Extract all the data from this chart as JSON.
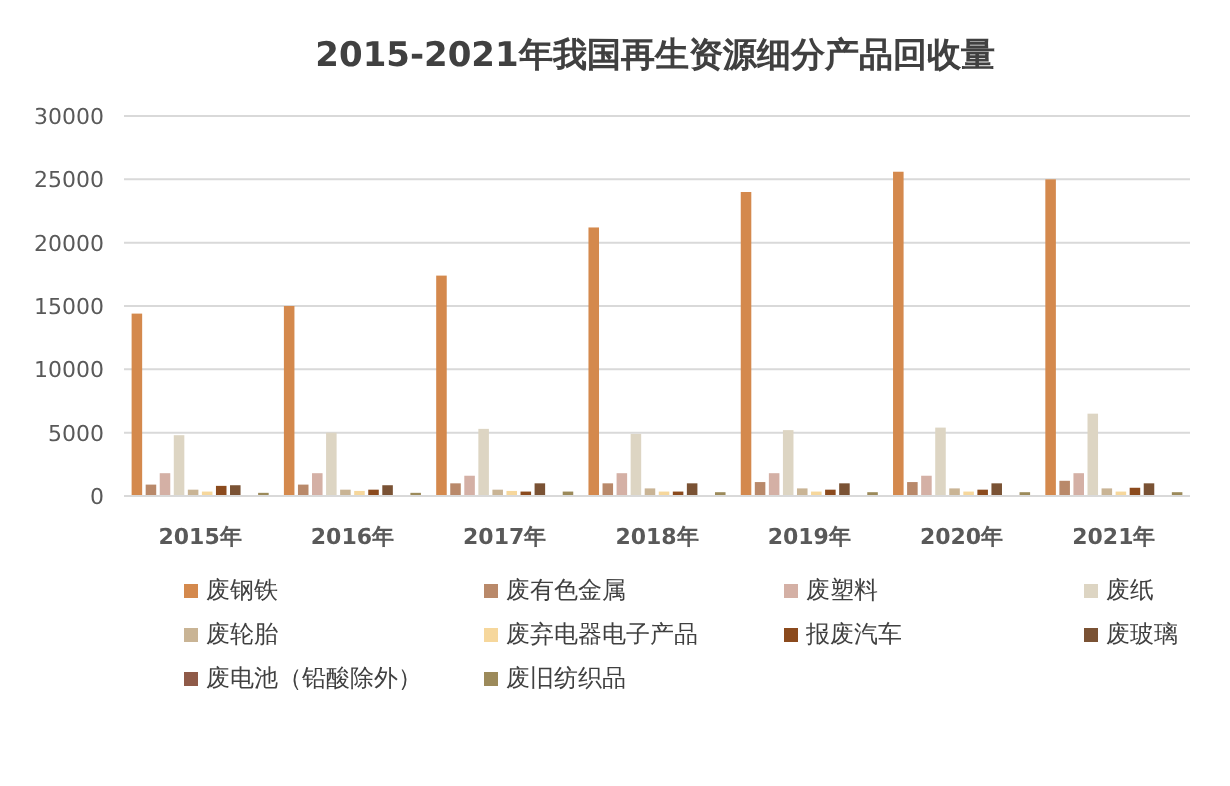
{
  "chart_data": {
    "type": "bar",
    "title": "2015-2021年我国再生资源细分产品回收量",
    "categories": [
      "2015年",
      "2016年",
      "2017年",
      "2018年",
      "2019年",
      "2020年",
      "2021年"
    ],
    "series": [
      {
        "name": "废钢铁",
        "color": "#d4894d",
        "values": [
          14400,
          15000,
          17400,
          21200,
          24000,
          25600,
          25000
        ]
      },
      {
        "name": "废有色金属",
        "color": "#b9896a",
        "values": [
          900,
          900,
          1000,
          1000,
          1100,
          1100,
          1200
        ]
      },
      {
        "name": "废塑料",
        "color": "#d4b0a5",
        "values": [
          1800,
          1800,
          1600,
          1800,
          1800,
          1600,
          1800
        ]
      },
      {
        "name": "废纸",
        "color": "#ddd5c3",
        "values": [
          4800,
          5000,
          5300,
          4900,
          5200,
          5400,
          6500
        ]
      },
      {
        "name": "废轮胎",
        "color": "#c9b495",
        "values": [
          500,
          500,
          500,
          600,
          600,
          600,
          600
        ]
      },
      {
        "name": "废弃电器电子产品",
        "color": "#f6d79c",
        "values": [
          350,
          400,
          400,
          350,
          350,
          350,
          350
        ]
      },
      {
        "name": "报废汽车",
        "color": "#8b4a1d",
        "values": [
          800,
          500,
          350,
          350,
          500,
          500,
          650
        ]
      },
      {
        "name": "废玻璃",
        "color": "#7a5234",
        "values": [
          850,
          850,
          1000,
          1000,
          1000,
          1000,
          1000
        ]
      },
      {
        "name": "废电池（铅酸除外）",
        "color": "#8f5a48",
        "values": [
          null,
          null,
          null,
          null,
          null,
          null,
          null
        ]
      },
      {
        "name": "废旧纺织品",
        "color": "#9c8a5a",
        "values": [
          250,
          250,
          350,
          300,
          300,
          300,
          300
        ]
      }
    ],
    "ylim": [
      0,
      30000
    ],
    "yticks": [
      0,
      5000,
      10000,
      15000,
      20000,
      25000,
      30000
    ],
    "grid": "y",
    "legend": "bottom"
  }
}
